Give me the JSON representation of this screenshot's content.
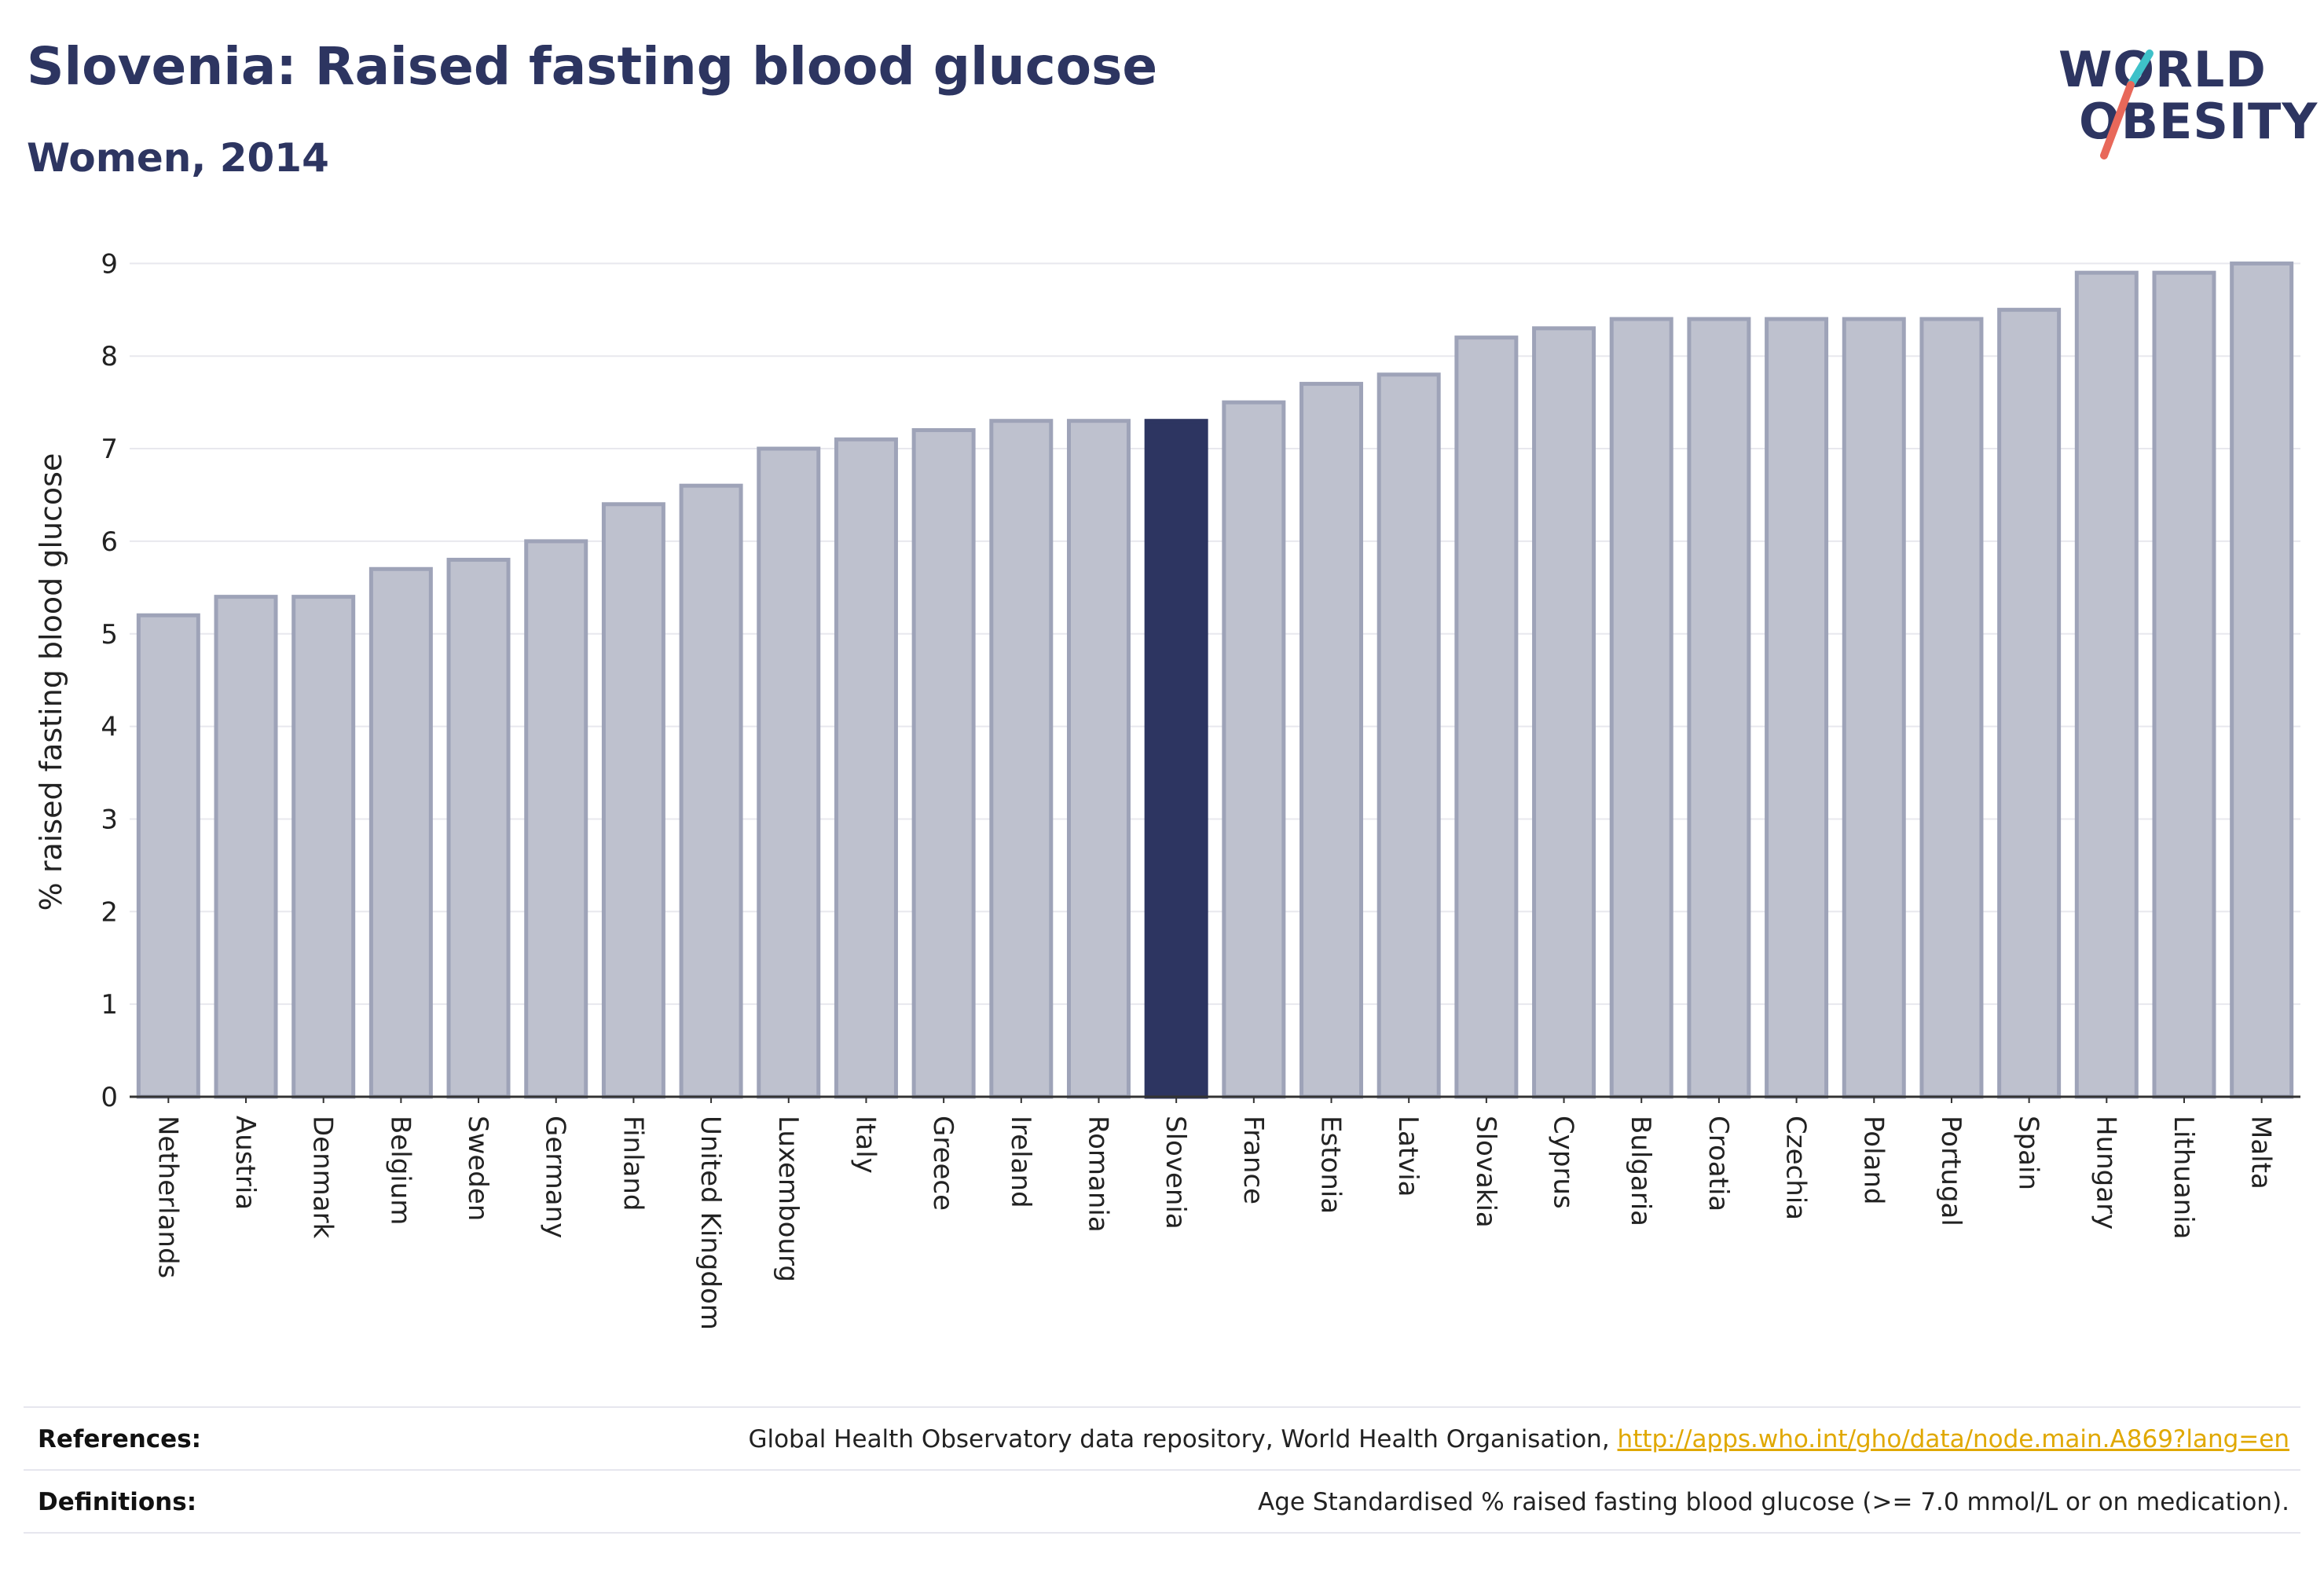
{
  "header": {
    "title": "Slovenia: Raised fasting blood glucose",
    "subtitle": "Women, 2014"
  },
  "logo": {
    "line1": "WORLD",
    "line2": "OBESITY",
    "text_color": "#2d3561",
    "slash_colors": [
      "#3ec1c9",
      "#e8685a"
    ]
  },
  "chart_data": {
    "type": "bar",
    "ylabel": "% raised fasting blood glucose",
    "xlabel": "",
    "ylim": [
      0,
      9.3
    ],
    "yticks": [
      0,
      1,
      2,
      3,
      4,
      5,
      6,
      7,
      8,
      9
    ],
    "grid": true,
    "highlight": "Slovenia",
    "colors": {
      "bar": "#bec1ce",
      "bar_edge": "#9ea3b8",
      "highlight": "#2d3561",
      "grid": "#e8e8ee",
      "axis": "#333333"
    },
    "categories": [
      "Netherlands",
      "Austria",
      "Denmark",
      "Belgium",
      "Sweden",
      "Germany",
      "Finland",
      "United Kingdom",
      "Luxembourg",
      "Italy",
      "Greece",
      "Ireland",
      "Romania",
      "Slovenia",
      "France",
      "Estonia",
      "Latvia",
      "Slovakia",
      "Cyprus",
      "Bulgaria",
      "Croatia",
      "Czechia",
      "Poland",
      "Portugal",
      "Spain",
      "Hungary",
      "Lithuania",
      "Malta"
    ],
    "values": [
      5.2,
      5.4,
      5.4,
      5.7,
      5.8,
      6.0,
      6.4,
      6.6,
      7.0,
      7.1,
      7.2,
      7.3,
      7.3,
      7.3,
      7.5,
      7.7,
      7.8,
      8.2,
      8.3,
      8.4,
      8.4,
      8.4,
      8.4,
      8.4,
      8.5,
      8.9,
      8.9,
      9.0
    ]
  },
  "footer": {
    "references_label": "References:",
    "references_text": "Global Health Observatory data repository, World Health Organisation, ",
    "references_link": "http://apps.who.int/gho/data/node.main.A869?lang=en",
    "definitions_label": "Definitions:",
    "definitions_text": "Age Standardised % raised fasting blood glucose (>= 7.0 mmol/L or on medication)."
  }
}
